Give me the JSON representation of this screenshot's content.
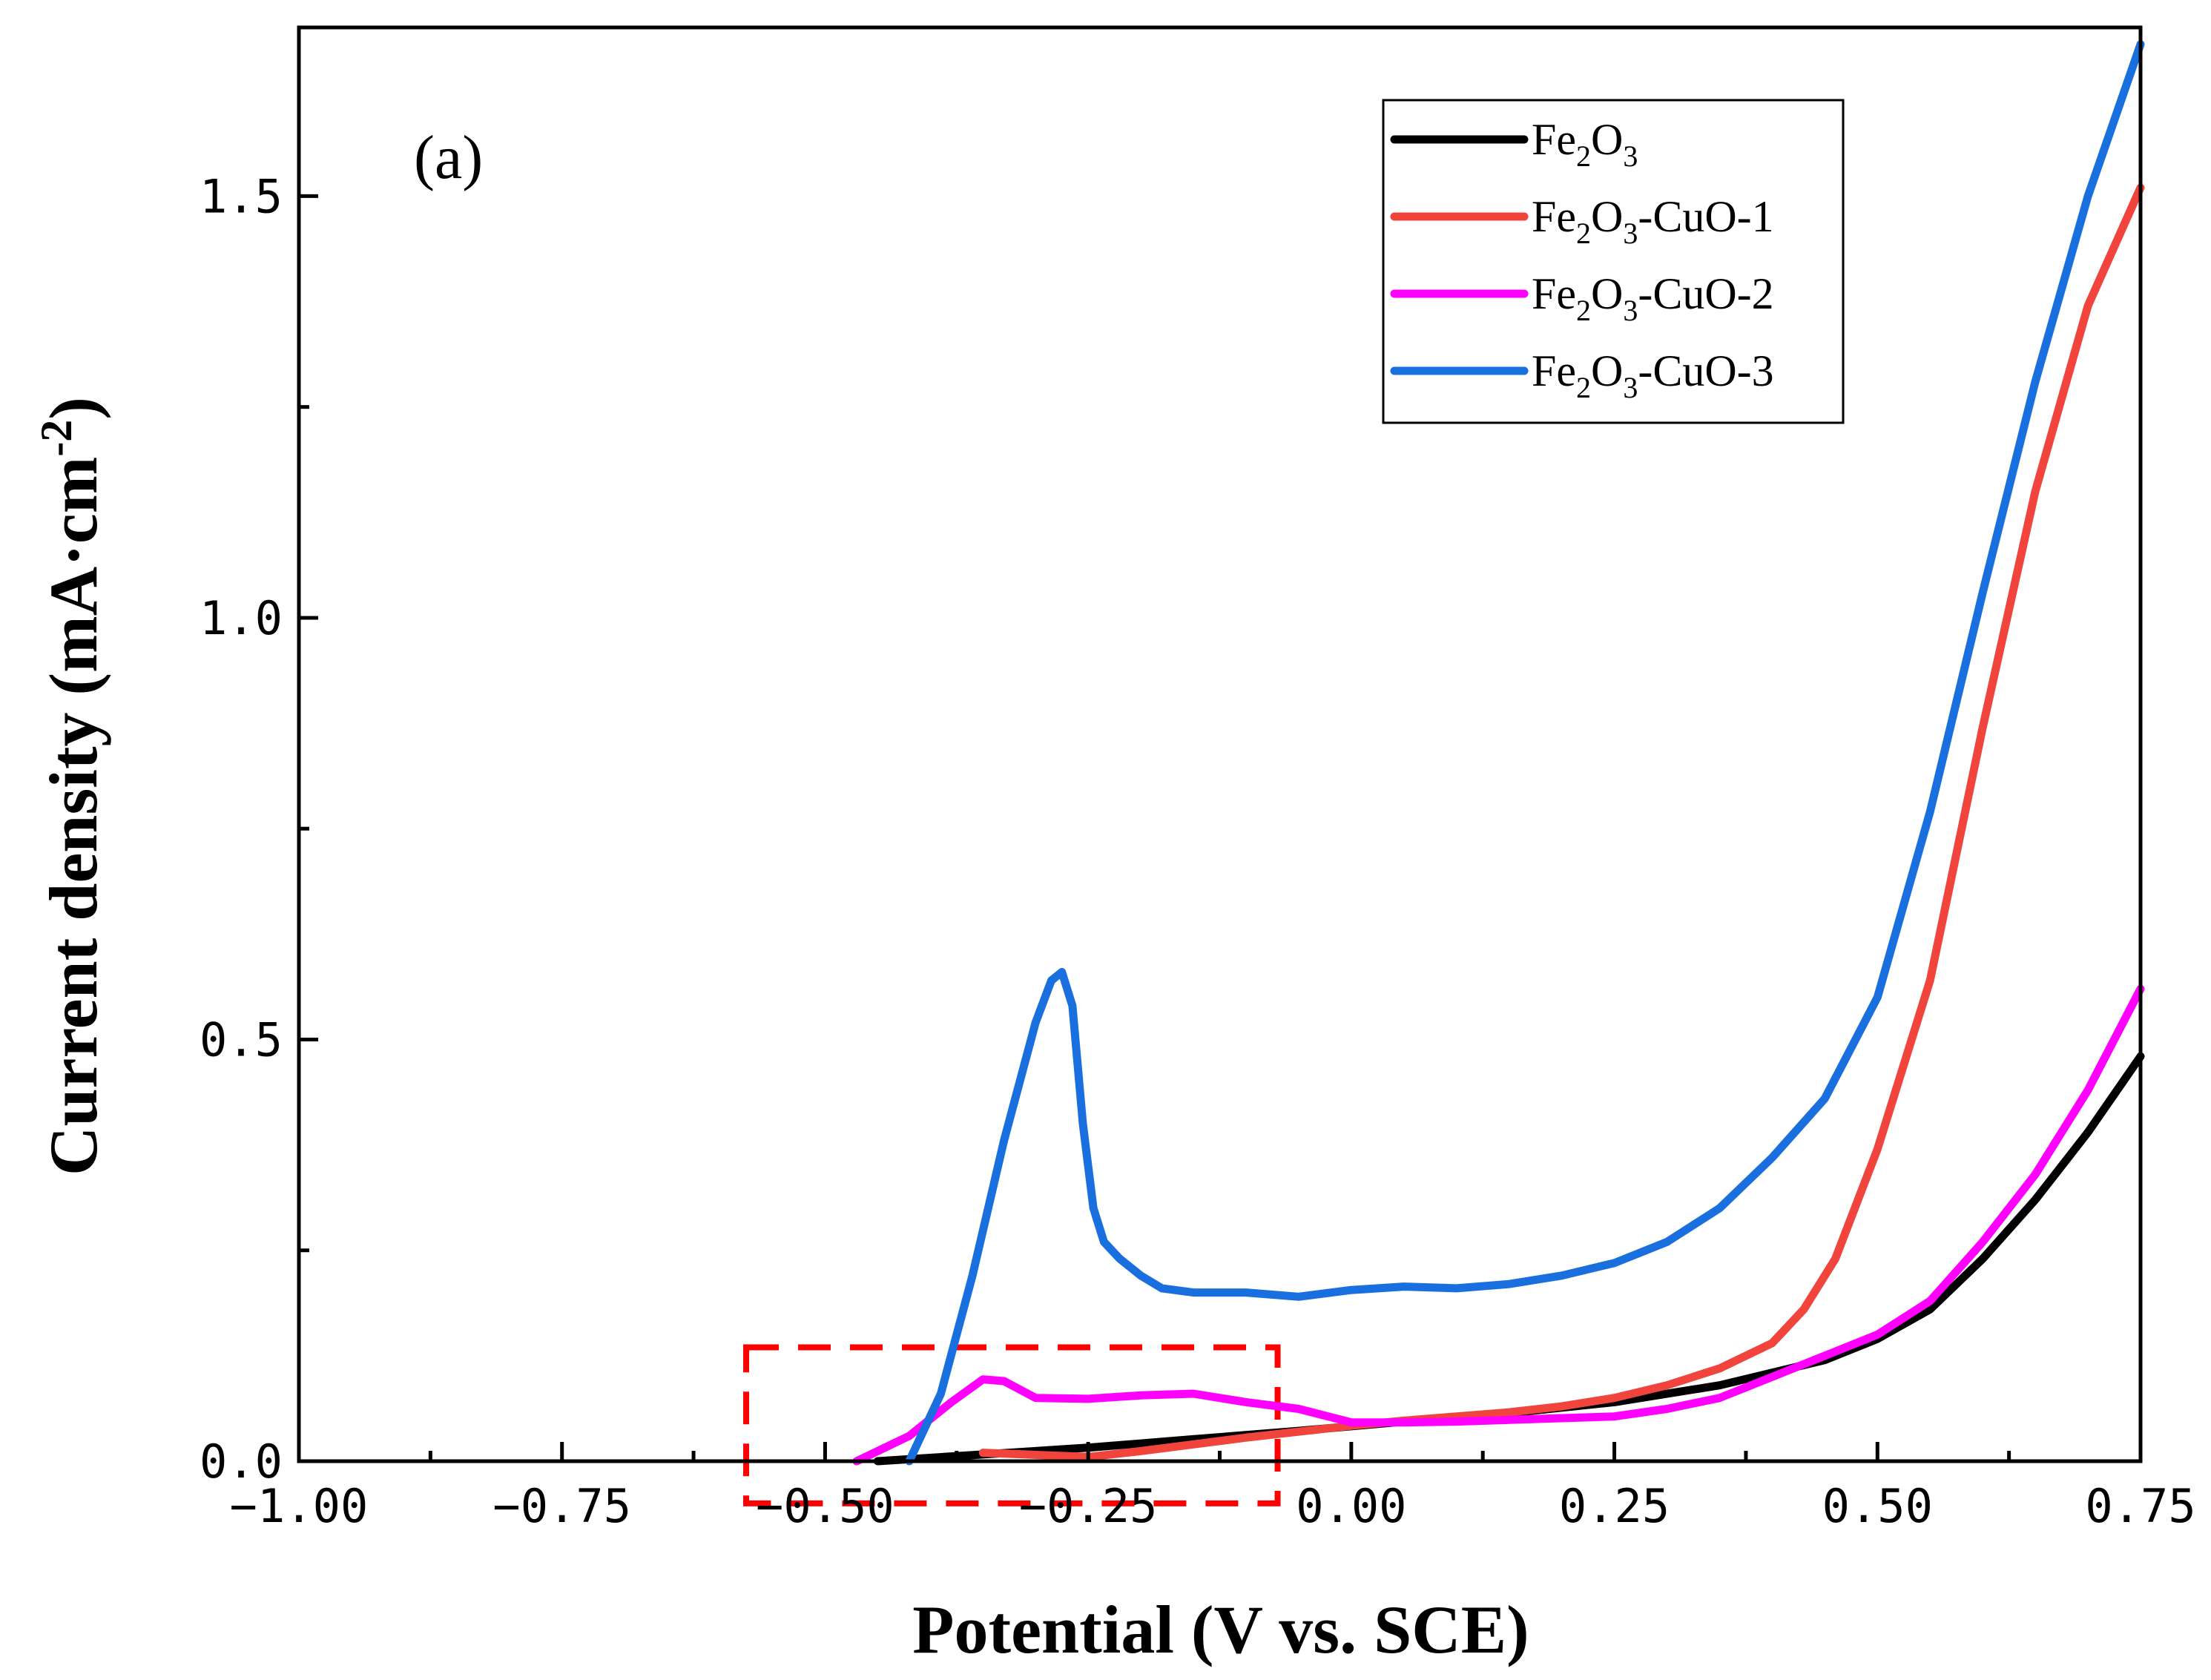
{
  "chart_data": {
    "type": "line",
    "panel_label": "(a)",
    "xlabel": "Potential (V vs. SCE)",
    "ylabel_main": "Current density (mA·cm",
    "ylabel_sup": "-2",
    "ylabel_close": ")",
    "xlim": [
      -1.0,
      0.75
    ],
    "ylim": [
      0,
      1.7
    ],
    "x_ticks": [
      -1.0,
      -0.75,
      -0.5,
      -0.25,
      0.0,
      0.25,
      0.5,
      0.75
    ],
    "x_tick_labels": [
      "−1.00",
      "−0.75",
      "−0.50",
      "−0.25",
      "0.00",
      "0.25",
      "0.50",
      "0.75"
    ],
    "x_minor_ticks": [
      -0.875,
      -0.625,
      -0.375,
      -0.125,
      0.125,
      0.375,
      0.625
    ],
    "y_ticks": [
      0.0,
      0.5,
      1.0,
      1.5
    ],
    "y_tick_labels": [
      "0.0",
      "0.5",
      "1.0",
      "1.5"
    ],
    "y_minor_ticks": [
      0.25,
      0.75,
      1.25
    ],
    "grid": false,
    "legend_position": "top-right",
    "highlight_box": {
      "x_range": [
        -0.575,
        -0.07
      ],
      "y_range": [
        -0.05,
        0.135
      ],
      "color": "#ff0000",
      "style": "dashed"
    },
    "series": [
      {
        "name": "Fe2O3",
        "label_base": "Fe",
        "label_sub1": "2",
        "label_mid": "O",
        "label_sub2": "3",
        "label_suffix": "",
        "color": "#000000",
        "x": [
          -0.45,
          -0.35,
          -0.25,
          -0.15,
          -0.05,
          0.05,
          0.15,
          0.25,
          0.35,
          0.45,
          0.5,
          0.55,
          0.6,
          0.65,
          0.7,
          0.75
        ],
        "y": [
          0.0,
          0.008,
          0.016,
          0.026,
          0.036,
          0.047,
          0.057,
          0.07,
          0.09,
          0.12,
          0.145,
          0.18,
          0.24,
          0.31,
          0.39,
          0.48
        ]
      },
      {
        "name": "Fe2O3-CuO-1",
        "label_base": "Fe",
        "label_sub1": "2",
        "label_mid": "O",
        "label_sub2": "3",
        "label_suffix": "-CuO-1",
        "color": "#f0443c",
        "x": [
          -0.35,
          -0.25,
          -0.2,
          -0.15,
          -0.1,
          -0.05,
          0.0,
          0.05,
          0.1,
          0.15,
          0.2,
          0.25,
          0.3,
          0.35,
          0.4,
          0.43,
          0.46,
          0.5,
          0.55,
          0.6,
          0.65,
          0.7,
          0.75
        ],
        "y": [
          0.01,
          0.005,
          0.012,
          0.02,
          0.028,
          0.035,
          0.042,
          0.048,
          0.053,
          0.058,
          0.065,
          0.075,
          0.09,
          0.11,
          0.14,
          0.18,
          0.24,
          0.37,
          0.57,
          0.87,
          1.15,
          1.37,
          1.51
        ]
      },
      {
        "name": "Fe2O3-CuO-2",
        "label_base": "Fe",
        "label_sub1": "2",
        "label_mid": "O",
        "label_sub2": "3",
        "label_suffix": "-CuO-2",
        "color": "#ff00ff",
        "x": [
          -0.47,
          -0.42,
          -0.38,
          -0.35,
          -0.33,
          -0.3,
          -0.25,
          -0.2,
          -0.15,
          -0.1,
          -0.05,
          0.0,
          0.05,
          0.1,
          0.15,
          0.2,
          0.25,
          0.3,
          0.35,
          0.4,
          0.45,
          0.5,
          0.55,
          0.6,
          0.65,
          0.7,
          0.75
        ],
        "y": [
          0.0,
          0.03,
          0.07,
          0.097,
          0.095,
          0.075,
          0.074,
          0.078,
          0.08,
          0.07,
          0.062,
          0.046,
          0.046,
          0.047,
          0.049,
          0.051,
          0.053,
          0.062,
          0.075,
          0.1,
          0.125,
          0.15,
          0.19,
          0.26,
          0.34,
          0.44,
          0.56
        ]
      },
      {
        "name": "Fe2O3-CuO-3",
        "label_base": "Fe",
        "label_sub1": "2",
        "label_mid": "O",
        "label_sub2": "3",
        "label_suffix": "-CuO-3",
        "color": "#1a6fdf",
        "x": [
          -0.42,
          -0.39,
          -0.36,
          -0.33,
          -0.3,
          -0.285,
          -0.275,
          -0.265,
          -0.255,
          -0.245,
          -0.235,
          -0.22,
          -0.2,
          -0.18,
          -0.15,
          -0.1,
          -0.05,
          0.0,
          0.05,
          0.1,
          0.15,
          0.2,
          0.25,
          0.3,
          0.35,
          0.4,
          0.45,
          0.5,
          0.55,
          0.6,
          0.65,
          0.7,
          0.75
        ],
        "y": [
          0.0,
          0.08,
          0.22,
          0.38,
          0.52,
          0.57,
          0.58,
          0.54,
          0.4,
          0.3,
          0.26,
          0.24,
          0.22,
          0.205,
          0.2,
          0.2,
          0.195,
          0.203,
          0.207,
          0.205,
          0.21,
          0.22,
          0.235,
          0.26,
          0.3,
          0.36,
          0.43,
          0.55,
          0.77,
          1.03,
          1.28,
          1.5,
          1.68
        ]
      }
    ]
  }
}
